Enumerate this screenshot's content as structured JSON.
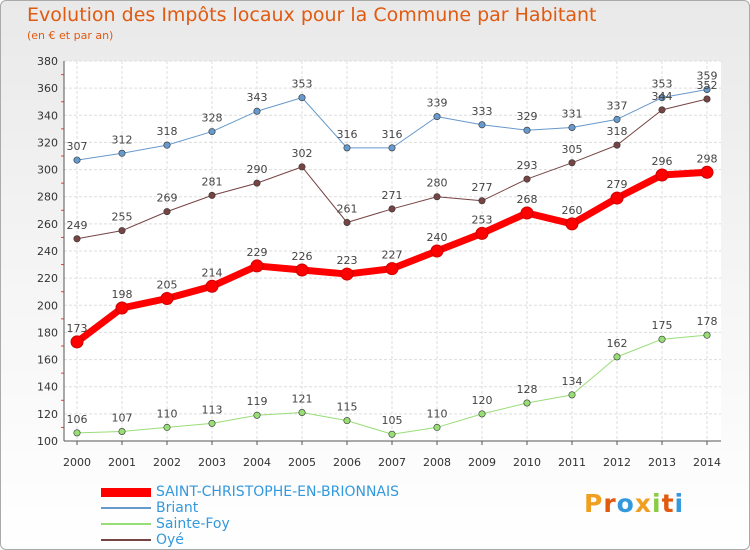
{
  "title": "Evolution des Impôts locaux pour la Commune par Habitant",
  "subtitle": "(en € et par an)",
  "logo": {
    "text": "Proxiti",
    "letters": [
      {
        "ch": "P",
        "color": "#f0a020"
      },
      {
        "ch": "r",
        "color": "#e05a10"
      },
      {
        "ch": "o",
        "color": "#3399dd"
      },
      {
        "ch": "x",
        "color": "#f0a020"
      },
      {
        "ch": "i",
        "color": "#88cc44"
      },
      {
        "ch": "t",
        "color": "#e05a10"
      },
      {
        "ch": "i",
        "color": "#3399dd"
      }
    ]
  },
  "chart_data": {
    "type": "line",
    "title": "Evolution des Impôts locaux pour la Commune par Habitant",
    "subtitle": "(en € et par an)",
    "x": [
      "2000",
      "2001",
      "2002",
      "2003",
      "2004",
      "2005",
      "2006",
      "2007",
      "2008",
      "2009",
      "2010",
      "2011",
      "2012",
      "2013",
      "2014"
    ],
    "ylim": [
      100,
      380
    ],
    "yticks": [
      100,
      120,
      140,
      160,
      180,
      200,
      220,
      240,
      260,
      280,
      300,
      320,
      340,
      360,
      380
    ],
    "grid": true,
    "legend_position": "bottom-left",
    "series": [
      {
        "name": "SAINT-CHRISTOPHE-EN-BRIONNAIS",
        "color": "#ff0000",
        "width": 7,
        "values": [
          173,
          198,
          205,
          214,
          229,
          226,
          223,
          227,
          240,
          253,
          268,
          260,
          279,
          296,
          298
        ]
      },
      {
        "name": "Briant",
        "color": "#6699cc",
        "width": 1,
        "values": [
          307,
          312,
          318,
          328,
          343,
          353,
          316,
          316,
          339,
          333,
          329,
          331,
          337,
          353,
          359
        ]
      },
      {
        "name": "Sainte-Foy",
        "color": "#99dd77",
        "width": 1,
        "values": [
          106,
          107,
          110,
          113,
          119,
          121,
          115,
          105,
          110,
          120,
          128,
          134,
          162,
          175,
          178
        ]
      },
      {
        "name": "Oyé",
        "color": "#774444",
        "width": 1,
        "values": [
          249,
          255,
          269,
          281,
          290,
          302,
          261,
          271,
          280,
          277,
          293,
          305,
          318,
          344,
          352
        ]
      }
    ]
  }
}
